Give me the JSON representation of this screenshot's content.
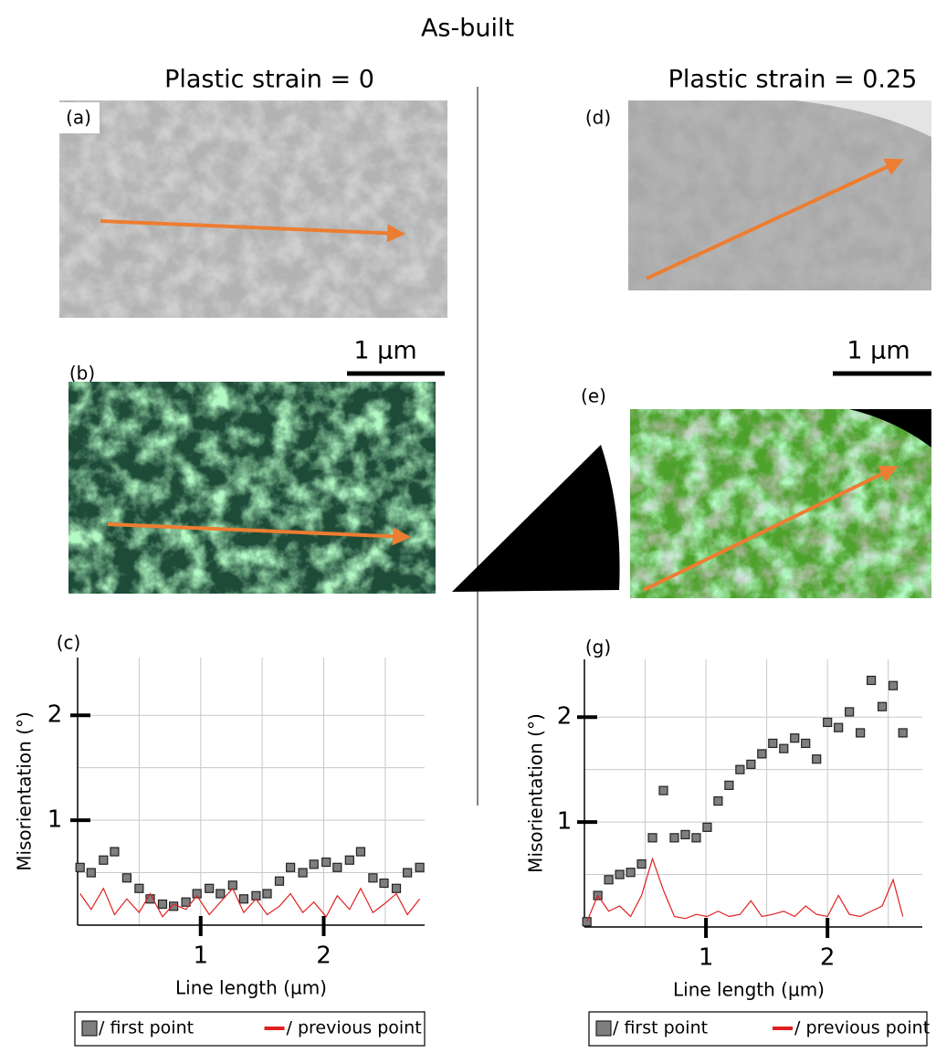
{
  "title": "As-built",
  "columns": [
    {
      "heading": "Plastic strain = 0",
      "scale_bar": "1 µm"
    },
    {
      "heading": "Plastic strain = 0.25",
      "scale_bar": "1 µm"
    }
  ],
  "panels": [
    "(a)",
    "(b)",
    "(c)",
    "(d)",
    "(e)",
    "(g)"
  ],
  "chart_data": [
    {
      "type": "scatter",
      "y_label": "Misorientation (°)",
      "x_label": "Line length (µm)",
      "xlim": [
        0,
        2.82
      ],
      "ylim": [
        0,
        2.55
      ],
      "xticks": [
        1,
        2
      ],
      "yticks": [
        1,
        2
      ],
      "xgrid": [
        0.5,
        1,
        1.5,
        2,
        2.5
      ],
      "ygrid": [
        0.5,
        1,
        1.5,
        2
      ],
      "x": [
        0.02,
        0.11,
        0.21,
        0.3,
        0.4,
        0.5,
        0.59,
        0.69,
        0.78,
        0.88,
        0.97,
        1.07,
        1.16,
        1.26,
        1.35,
        1.45,
        1.54,
        1.64,
        1.73,
        1.83,
        1.92,
        2.02,
        2.11,
        2.21,
        2.3,
        2.4,
        2.49,
        2.59,
        2.68,
        2.78
      ],
      "series": [
        {
          "name": "/ first point",
          "type": "scatter",
          "color": "#7f7f7f",
          "values": [
            0.55,
            0.5,
            0.62,
            0.7,
            0.45,
            0.35,
            0.25,
            0.2,
            0.18,
            0.22,
            0.3,
            0.35,
            0.3,
            0.38,
            0.25,
            0.28,
            0.3,
            0.42,
            0.55,
            0.5,
            0.58,
            0.6,
            0.55,
            0.62,
            0.7,
            0.45,
            0.4,
            0.35,
            0.5,
            0.55
          ]
        },
        {
          "name": "/ previous point",
          "type": "line",
          "color": "#e02020",
          "values": [
            0.3,
            0.15,
            0.35,
            0.1,
            0.25,
            0.12,
            0.3,
            0.08,
            0.2,
            0.15,
            0.28,
            0.1,
            0.22,
            0.35,
            0.12,
            0.25,
            0.1,
            0.18,
            0.3,
            0.12,
            0.22,
            0.08,
            0.28,
            0.15,
            0.35,
            0.12,
            0.2,
            0.3,
            0.1,
            0.25
          ]
        }
      ]
    },
    {
      "type": "scatter",
      "y_label": "Misorientation (°)",
      "x_label": "Line length (µm)",
      "xlim": [
        0,
        2.78
      ],
      "ylim": [
        0,
        2.55
      ],
      "xticks": [
        1,
        2
      ],
      "yticks": [
        1,
        2
      ],
      "xgrid": [
        0.5,
        1,
        1.5,
        2,
        2.5
      ],
      "ygrid": [
        0.5,
        1,
        1.5,
        2
      ],
      "x": [
        0.02,
        0.11,
        0.2,
        0.29,
        0.38,
        0.47,
        0.56,
        0.65,
        0.74,
        0.83,
        0.92,
        1.01,
        1.1,
        1.19,
        1.28,
        1.37,
        1.46,
        1.55,
        1.64,
        1.73,
        1.82,
        1.91,
        2.0,
        2.09,
        2.18,
        2.27,
        2.36,
        2.45,
        2.54,
        2.62
      ],
      "series": [
        {
          "name": "/ first point",
          "type": "scatter",
          "color": "#7f7f7f",
          "values": [
            0.05,
            0.3,
            0.45,
            0.5,
            0.52,
            0.6,
            0.85,
            1.3,
            0.85,
            0.88,
            0.85,
            0.95,
            1.2,
            1.35,
            1.5,
            1.55,
            1.65,
            1.75,
            1.7,
            1.8,
            1.75,
            1.6,
            1.95,
            1.9,
            2.05,
            1.85,
            2.35,
            2.1,
            2.3,
            1.85
          ]
        },
        {
          "name": "/ previous point",
          "type": "line",
          "color": "#e02020",
          "values": [
            0.05,
            0.3,
            0.15,
            0.2,
            0.1,
            0.3,
            0.65,
            0.35,
            0.1,
            0.08,
            0.12,
            0.1,
            0.15,
            0.1,
            0.12,
            0.25,
            0.1,
            0.12,
            0.15,
            0.1,
            0.2,
            0.12,
            0.1,
            0.3,
            0.12,
            0.1,
            0.15,
            0.2,
            0.45,
            0.1
          ]
        }
      ]
    }
  ]
}
